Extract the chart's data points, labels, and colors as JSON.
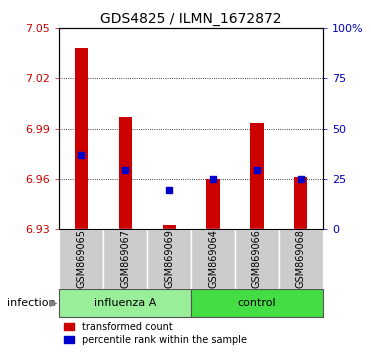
{
  "title": "GDS4825 / ILMN_1672872",
  "samples": [
    "GSM869065",
    "GSM869067",
    "GSM869069",
    "GSM869064",
    "GSM869066",
    "GSM869068"
  ],
  "bar_bottom": 6.93,
  "bar_tops": [
    7.038,
    6.997,
    6.932,
    6.96,
    6.993,
    6.961
  ],
  "percentile_values": [
    6.974,
    6.965,
    6.953,
    6.96,
    6.965,
    6.96
  ],
  "ylim": [
    6.93,
    7.05
  ],
  "yticks_left": [
    6.93,
    6.96,
    6.99,
    7.02,
    7.05
  ],
  "yticks_right": [
    0,
    25,
    50,
    75,
    100
  ],
  "bar_color": "#cc0000",
  "percentile_color": "#0000cc",
  "bar_width": 0.3,
  "tick_label_color_left": "#cc0000",
  "tick_label_color_right": "#0000bb",
  "background_color": "#ffffff",
  "sample_box_color": "#cccccc",
  "influenza_box_color": "#99ee99",
  "control_box_color": "#44dd44",
  "legend_items": [
    "transformed count",
    "percentile rank within the sample"
  ],
  "xlabel_infection": "infection",
  "group_boundary": 3
}
